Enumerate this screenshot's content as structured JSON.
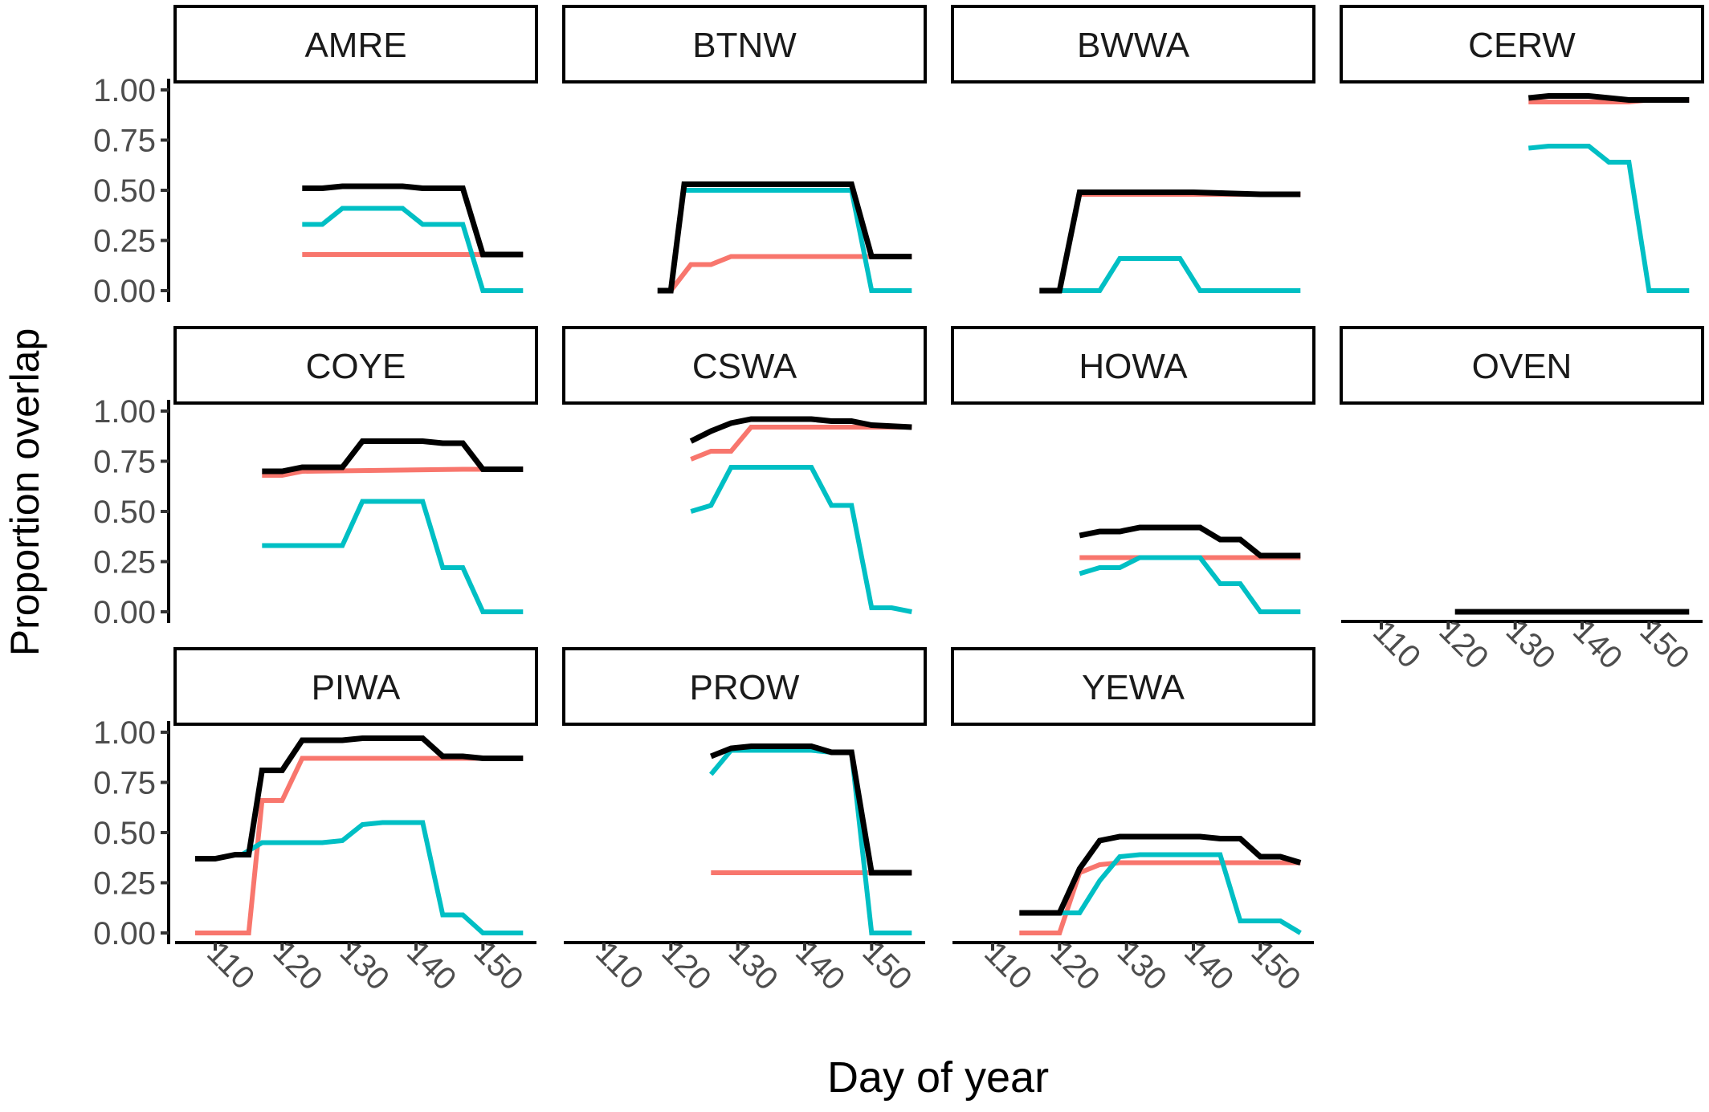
{
  "figure": {
    "xlabel": "Day of year",
    "ylabel": "Proportion overlap"
  },
  "chart_data": {
    "type": "line",
    "layout": "facet-grid-3x4",
    "xlabel": "Day of year",
    "ylabel": "Proportion overlap",
    "xlim": [
      104,
      158
    ],
    "ylim": [
      0,
      1
    ],
    "x_ticks": [
      110,
      120,
      130,
      140,
      150
    ],
    "y_ticks": [
      0,
      0.25,
      0.5,
      0.75,
      1
    ],
    "y_tick_labels": [
      "0.00",
      "0.25",
      "0.50",
      "0.75",
      "1.00"
    ],
    "grid": false,
    "legend": "none",
    "series_colors": {
      "black": "#000000",
      "red": "#f8766d",
      "cyan": "#00bfc4"
    },
    "panels": [
      {
        "name": "AMRE",
        "black": [
          [
            123,
            0.51
          ],
          [
            126,
            0.51
          ],
          [
            129,
            0.52
          ],
          [
            132,
            0.52
          ],
          [
            135,
            0.52
          ],
          [
            138,
            0.52
          ],
          [
            141,
            0.51
          ],
          [
            144,
            0.51
          ],
          [
            147,
            0.51
          ],
          [
            150,
            0.18
          ],
          [
            156,
            0.18
          ]
        ],
        "red": [
          [
            123,
            0.18
          ],
          [
            156,
            0.18
          ]
        ],
        "cyan": [
          [
            123,
            0.33
          ],
          [
            126,
            0.33
          ],
          [
            129,
            0.41
          ],
          [
            132,
            0.41
          ],
          [
            135,
            0.41
          ],
          [
            138,
            0.41
          ],
          [
            141,
            0.33
          ],
          [
            144,
            0.33
          ],
          [
            147,
            0.33
          ],
          [
            150,
            0.0
          ],
          [
            156,
            0.0
          ]
        ]
      },
      {
        "name": "BTNW",
        "black": [
          [
            118,
            0.0
          ],
          [
            120,
            0.0
          ],
          [
            122,
            0.53
          ],
          [
            125,
            0.53
          ],
          [
            128,
            0.53
          ],
          [
            131,
            0.53
          ],
          [
            135,
            0.53
          ],
          [
            139,
            0.53
          ],
          [
            143,
            0.53
          ],
          [
            147,
            0.53
          ],
          [
            150,
            0.17
          ],
          [
            156,
            0.17
          ]
        ],
        "red": [
          [
            120,
            0.0
          ],
          [
            123,
            0.13
          ],
          [
            126,
            0.13
          ],
          [
            129,
            0.17
          ],
          [
            132,
            0.17
          ],
          [
            147,
            0.17
          ],
          [
            150,
            0.17
          ],
          [
            156,
            0.17
          ]
        ],
        "cyan": [
          [
            122,
            0.5
          ],
          [
            147,
            0.5
          ],
          [
            150,
            0.0
          ],
          [
            156,
            0.0
          ]
        ]
      },
      {
        "name": "BWWA",
        "black": [
          [
            117,
            0.0
          ],
          [
            120,
            0.0
          ],
          [
            123,
            0.49
          ],
          [
            126,
            0.49
          ],
          [
            130,
            0.49
          ],
          [
            140,
            0.49
          ],
          [
            150,
            0.48
          ],
          [
            156,
            0.48
          ]
        ],
        "red": [
          [
            123,
            0.48
          ],
          [
            156,
            0.48
          ]
        ],
        "cyan": [
          [
            120,
            0.0
          ],
          [
            126,
            0.0
          ],
          [
            129,
            0.16
          ],
          [
            132,
            0.16
          ],
          [
            135,
            0.16
          ],
          [
            138,
            0.16
          ],
          [
            141,
            0.0
          ],
          [
            144,
            0.0
          ],
          [
            150,
            0.0
          ],
          [
            156,
            0.0
          ]
        ]
      },
      {
        "name": "CERW",
        "black": [
          [
            132,
            0.96
          ],
          [
            135,
            0.97
          ],
          [
            141,
            0.97
          ],
          [
            147,
            0.95
          ],
          [
            150,
            0.95
          ],
          [
            156,
            0.95
          ]
        ],
        "red": [
          [
            132,
            0.94
          ],
          [
            147,
            0.94
          ],
          [
            150,
            0.95
          ],
          [
            156,
            0.95
          ]
        ],
        "cyan": [
          [
            132,
            0.71
          ],
          [
            135,
            0.72
          ],
          [
            141,
            0.72
          ],
          [
            144,
            0.64
          ],
          [
            147,
            0.64
          ],
          [
            150,
            0.0
          ],
          [
            156,
            0.0
          ]
        ]
      },
      {
        "name": "COYE",
        "black": [
          [
            117,
            0.7
          ],
          [
            120,
            0.7
          ],
          [
            123,
            0.72
          ],
          [
            126,
            0.72
          ],
          [
            129,
            0.72
          ],
          [
            132,
            0.85
          ],
          [
            135,
            0.85
          ],
          [
            138,
            0.85
          ],
          [
            141,
            0.85
          ],
          [
            144,
            0.84
          ],
          [
            147,
            0.84
          ],
          [
            150,
            0.71
          ],
          [
            156,
            0.71
          ]
        ],
        "red": [
          [
            117,
            0.68
          ],
          [
            120,
            0.68
          ],
          [
            123,
            0.7
          ],
          [
            147,
            0.71
          ],
          [
            156,
            0.71
          ]
        ],
        "cyan": [
          [
            117,
            0.33
          ],
          [
            120,
            0.33
          ],
          [
            126,
            0.33
          ],
          [
            129,
            0.33
          ],
          [
            132,
            0.55
          ],
          [
            135,
            0.55
          ],
          [
            138,
            0.55
          ],
          [
            141,
            0.55
          ],
          [
            144,
            0.22
          ],
          [
            147,
            0.22
          ],
          [
            150,
            0.0
          ],
          [
            156,
            0.0
          ]
        ]
      },
      {
        "name": "CSWA",
        "black": [
          [
            123,
            0.85
          ],
          [
            126,
            0.9
          ],
          [
            129,
            0.94
          ],
          [
            132,
            0.96
          ],
          [
            135,
            0.96
          ],
          [
            138,
            0.96
          ],
          [
            141,
            0.96
          ],
          [
            144,
            0.95
          ],
          [
            147,
            0.95
          ],
          [
            150,
            0.93
          ],
          [
            156,
            0.92
          ]
        ],
        "red": [
          [
            123,
            0.76
          ],
          [
            126,
            0.8
          ],
          [
            129,
            0.8
          ],
          [
            132,
            0.92
          ],
          [
            135,
            0.92
          ],
          [
            150,
            0.92
          ],
          [
            156,
            0.92
          ]
        ],
        "cyan": [
          [
            123,
            0.5
          ],
          [
            126,
            0.53
          ],
          [
            129,
            0.72
          ],
          [
            132,
            0.72
          ],
          [
            135,
            0.72
          ],
          [
            138,
            0.72
          ],
          [
            141,
            0.72
          ],
          [
            144,
            0.53
          ],
          [
            147,
            0.53
          ],
          [
            150,
            0.02
          ],
          [
            153,
            0.02
          ],
          [
            156,
            0.0
          ]
        ]
      },
      {
        "name": "HOWA",
        "black": [
          [
            123,
            0.38
          ],
          [
            126,
            0.4
          ],
          [
            129,
            0.4
          ],
          [
            132,
            0.42
          ],
          [
            135,
            0.42
          ],
          [
            138,
            0.42
          ],
          [
            141,
            0.42
          ],
          [
            144,
            0.36
          ],
          [
            147,
            0.36
          ],
          [
            150,
            0.28
          ],
          [
            156,
            0.28
          ]
        ],
        "red": [
          [
            123,
            0.27
          ],
          [
            156,
            0.27
          ]
        ],
        "cyan": [
          [
            123,
            0.19
          ],
          [
            126,
            0.22
          ],
          [
            129,
            0.22
          ],
          [
            132,
            0.27
          ],
          [
            135,
            0.27
          ],
          [
            138,
            0.27
          ],
          [
            141,
            0.27
          ],
          [
            144,
            0.14
          ],
          [
            147,
            0.14
          ],
          [
            150,
            0.0
          ],
          [
            156,
            0.0
          ]
        ]
      },
      {
        "name": "OVEN",
        "black": [
          [
            121,
            0.0
          ],
          [
            156,
            0.0
          ]
        ],
        "red": [],
        "cyan": []
      },
      {
        "name": "PIWA",
        "black": [
          [
            107,
            0.37
          ],
          [
            110,
            0.37
          ],
          [
            113,
            0.39
          ],
          [
            115,
            0.39
          ],
          [
            117,
            0.81
          ],
          [
            120,
            0.81
          ],
          [
            123,
            0.96
          ],
          [
            126,
            0.96
          ],
          [
            129,
            0.96
          ],
          [
            132,
            0.97
          ],
          [
            135,
            0.97
          ],
          [
            138,
            0.97
          ],
          [
            141,
            0.97
          ],
          [
            144,
            0.88
          ],
          [
            147,
            0.88
          ],
          [
            150,
            0.87
          ],
          [
            156,
            0.87
          ]
        ],
        "red": [
          [
            107,
            0.0
          ],
          [
            115,
            0.0
          ],
          [
            117,
            0.66
          ],
          [
            120,
            0.66
          ],
          [
            123,
            0.87
          ],
          [
            150,
            0.87
          ],
          [
            156,
            0.87
          ]
        ],
        "cyan": [
          [
            114,
            0.39
          ],
          [
            117,
            0.45
          ],
          [
            120,
            0.45
          ],
          [
            126,
            0.45
          ],
          [
            129,
            0.46
          ],
          [
            132,
            0.54
          ],
          [
            135,
            0.55
          ],
          [
            138,
            0.55
          ],
          [
            141,
            0.55
          ],
          [
            144,
            0.09
          ],
          [
            147,
            0.09
          ],
          [
            150,
            0.0
          ],
          [
            156,
            0.0
          ]
        ]
      },
      {
        "name": "PROW",
        "black": [
          [
            126,
            0.88
          ],
          [
            129,
            0.92
          ],
          [
            132,
            0.93
          ],
          [
            135,
            0.93
          ],
          [
            138,
            0.93
          ],
          [
            141,
            0.93
          ],
          [
            144,
            0.9
          ],
          [
            147,
            0.9
          ],
          [
            150,
            0.3
          ],
          [
            156,
            0.3
          ]
        ],
        "red": [
          [
            126,
            0.3
          ],
          [
            150,
            0.3
          ],
          [
            156,
            0.3
          ]
        ],
        "cyan": [
          [
            126,
            0.79
          ],
          [
            129,
            0.91
          ],
          [
            132,
            0.91
          ],
          [
            141,
            0.91
          ],
          [
            144,
            0.9
          ],
          [
            147,
            0.9
          ],
          [
            150,
            0.0
          ],
          [
            156,
            0.0
          ]
        ]
      },
      {
        "name": "YEWA",
        "black": [
          [
            114,
            0.1
          ],
          [
            120,
            0.1
          ],
          [
            123,
            0.32
          ],
          [
            126,
            0.46
          ],
          [
            129,
            0.48
          ],
          [
            132,
            0.48
          ],
          [
            135,
            0.48
          ],
          [
            138,
            0.48
          ],
          [
            141,
            0.48
          ],
          [
            144,
            0.47
          ],
          [
            147,
            0.47
          ],
          [
            150,
            0.38
          ],
          [
            153,
            0.38
          ],
          [
            156,
            0.35
          ]
        ],
        "red": [
          [
            114,
            0.0
          ],
          [
            120,
            0.0
          ],
          [
            123,
            0.3
          ],
          [
            126,
            0.34
          ],
          [
            129,
            0.35
          ],
          [
            132,
            0.35
          ],
          [
            135,
            0.35
          ],
          [
            138,
            0.35
          ],
          [
            141,
            0.35
          ],
          [
            147,
            0.35
          ],
          [
            150,
            0.35
          ],
          [
            156,
            0.35
          ]
        ],
        "cyan": [
          [
            120,
            0.1
          ],
          [
            123,
            0.1
          ],
          [
            126,
            0.26
          ],
          [
            129,
            0.38
          ],
          [
            132,
            0.39
          ],
          [
            135,
            0.39
          ],
          [
            138,
            0.39
          ],
          [
            141,
            0.39
          ],
          [
            144,
            0.39
          ],
          [
            147,
            0.06
          ],
          [
            150,
            0.06
          ],
          [
            153,
            0.06
          ],
          [
            156,
            0.0
          ]
        ]
      }
    ]
  }
}
